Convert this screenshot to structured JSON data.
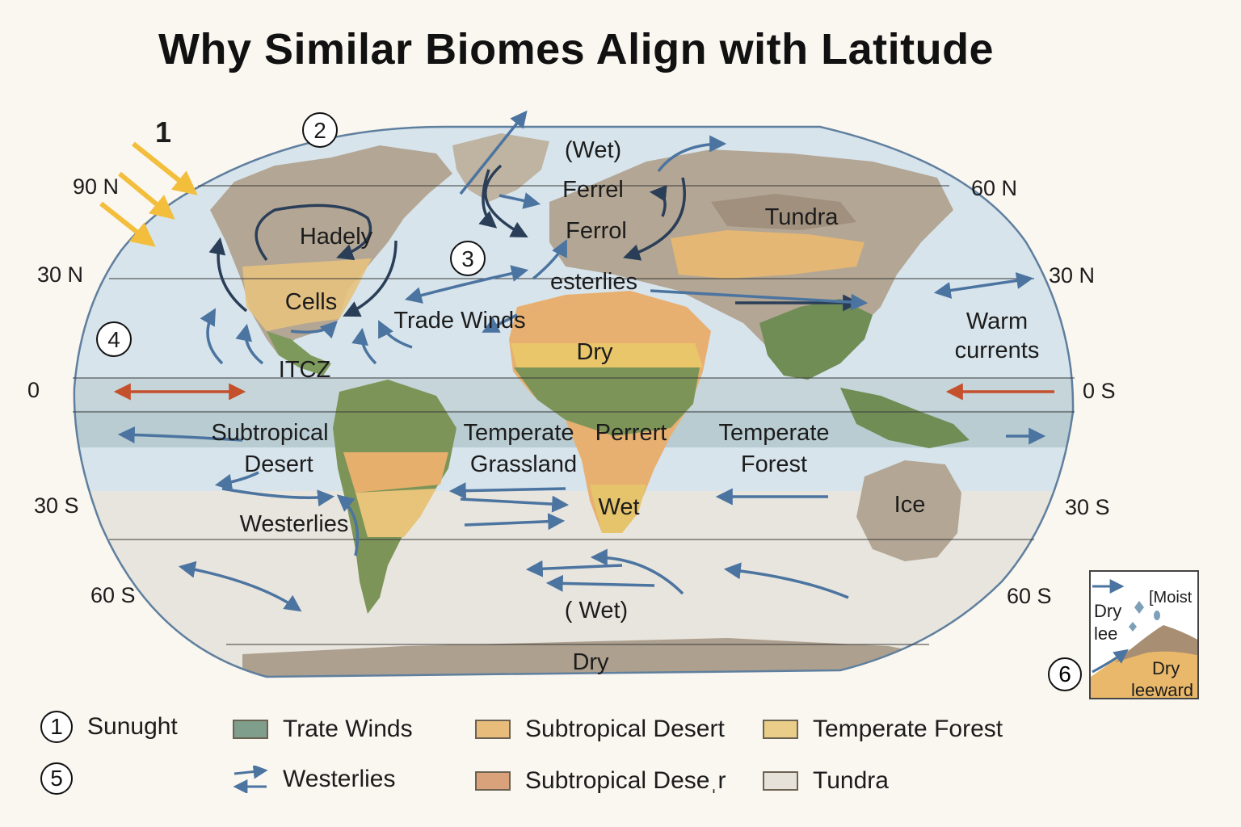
{
  "title": "Why Similar Biomes Align with Latitude",
  "latitudes": {
    "left": [
      "90 N",
      "30 N",
      "0",
      "30 S",
      "60 S"
    ],
    "right": [
      "60 N",
      "30 N",
      "0 S",
      "30 S",
      "60 S"
    ]
  },
  "markers": {
    "m1": "1",
    "m2": "2",
    "m3": "3",
    "m4": "4",
    "m5": "5",
    "m6": "6"
  },
  "map_labels": {
    "wet_north": "(Wet)",
    "ferrel_1": "Ferrel",
    "ferrol": "Ferrol",
    "hadely": "Hadely",
    "cells": "Cells",
    "esterlies": "esterlies",
    "tundra": "Tundra",
    "trade_winds": "Trade Winds",
    "dry_africa": "Dry",
    "itcz": "ITCZ",
    "warm_currents_1": "Warm",
    "warm_currents_2": "currents",
    "subtropical_1": "Subtropical",
    "subtropical_2": "Desert",
    "temperate_grass_1": "Temperate",
    "temperate_grass_2": "Grassland",
    "perrert": "Perrert",
    "temperate_forest_1": "Temperate",
    "temperate_forest_2": "Forest",
    "wet_africa": "Wet",
    "ice": "Ice",
    "westerlies": "Westerlies",
    "wet_south": "( Wet)",
    "dry_south": "Dry"
  },
  "inset": {
    "dry": "Dry",
    "lee": "lee",
    "moist": "[Moist",
    "dry2": "Dry",
    "leeward": "leeward"
  },
  "legend": {
    "sunlight": "Sunught",
    "trate_winds": "Trate Winds",
    "westerlies": "Westerlies",
    "subtropical_desert_1": "Subtropical Desert",
    "subtropical_desert_2": "Subtropical Deseˌr",
    "temperate_forest": "Temperate Forest",
    "tundra": "Tundra"
  },
  "colors": {
    "ocean": "#d4e2ea",
    "land": "#b5a795",
    "forest_green": "#6f8d55",
    "desert_orange": "#e8b070",
    "savanna_yellow": "#e9c66a",
    "tundra_grey": "#a89a8a",
    "arrow_blue": "#4c74a0",
    "arrow_dark": "#2a3e58",
    "arrow_red": "#c4502c",
    "sun_yellow": "#f2be3c",
    "swatch_trate": "#7f9e8c",
    "swatch_sub1": "#e8bd7c",
    "swatch_sub2": "#d9a27a",
    "swatch_temp": "#eacd88",
    "swatch_tundra": "#e6e2da"
  }
}
